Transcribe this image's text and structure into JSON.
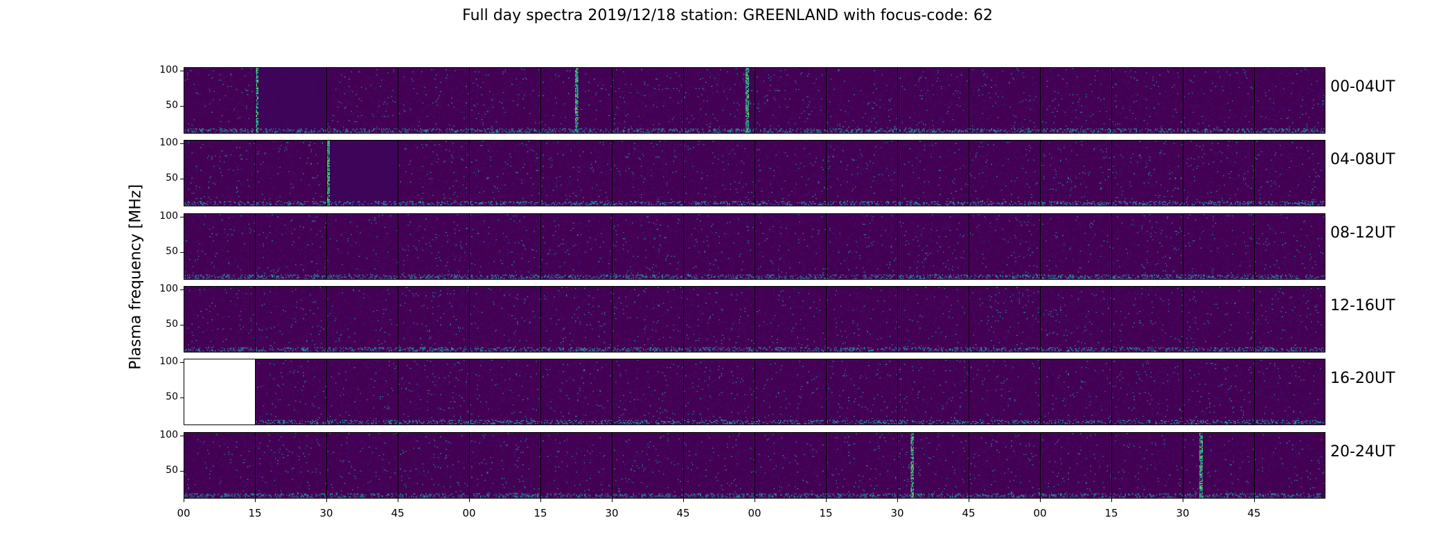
{
  "chart_data": {
    "type": "heatmap",
    "title": "Full day spectra 2019/12/18 station: GREENLAND with focus-code: 62",
    "ylabel": "Plasma frequency [MHz]",
    "yticks": [
      50,
      100
    ],
    "ylim": [
      10,
      105
    ],
    "xticks": [
      "00",
      "15",
      "30",
      "45",
      "00",
      "15",
      "30",
      "45",
      "00",
      "15",
      "30",
      "45",
      "00",
      "15",
      "30",
      "45"
    ],
    "panels_per_row": 16,
    "colormap": [
      "#440154",
      "#3b0f70",
      "#31688e",
      "#21918c",
      "#5ec962"
    ],
    "rows": [
      {
        "label": "00-04UT",
        "missing": [],
        "bursts": [
          {
            "panel": 1,
            "at": 0.02
          },
          {
            "panel": 5,
            "at": 0.5
          },
          {
            "panel": 7,
            "at": 0.9
          }
        ],
        "quiet": [
          1
        ]
      },
      {
        "label": "04-08UT",
        "missing": [],
        "bursts": [
          {
            "panel": 2,
            "at": 0.02
          }
        ],
        "quiet": [
          2
        ]
      },
      {
        "label": "08-12UT",
        "missing": [],
        "bursts": [],
        "quiet": []
      },
      {
        "label": "12-16UT",
        "missing": [],
        "bursts": [],
        "quiet": []
      },
      {
        "label": "16-20UT",
        "missing": [
          0
        ],
        "bursts": [],
        "quiet": []
      },
      {
        "label": "20-24UT",
        "missing": [],
        "bursts": [
          {
            "panel": 10,
            "at": 0.2
          },
          {
            "panel": 14,
            "at": 0.25
          }
        ],
        "quiet": []
      }
    ]
  }
}
